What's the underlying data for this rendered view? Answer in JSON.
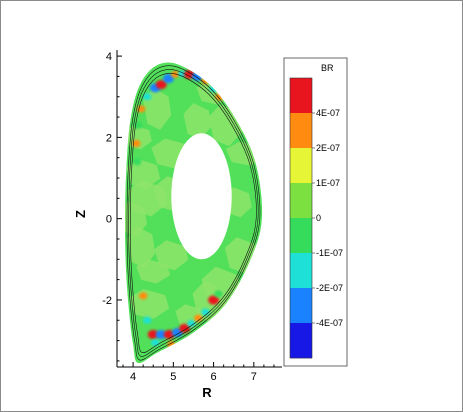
{
  "chart_data": {
    "type": "heatmap",
    "title": "",
    "xlabel": "R",
    "ylabel": "Z",
    "xlim": [
      3.6,
      7.7
    ],
    "ylim": [
      -3.65,
      4.15
    ],
    "x_ticks": [
      "4",
      "5",
      "6",
      "7"
    ],
    "y_ticks": [
      "4",
      "2",
      "0",
      "-2"
    ],
    "x_tick_values": [
      4,
      5,
      6,
      7
    ],
    "y_tick_values": [
      4,
      2,
      0,
      -2
    ],
    "legend": {
      "title": "BR",
      "placement": "right",
      "labels": [
        "4E-07",
        "2E-07",
        "1E-07",
        "0",
        "-1E-07",
        "-2E-07",
        "-4E-07"
      ],
      "colors": [
        "#e8141e",
        "#ff8c10",
        "#e6f536",
        "#7be040",
        "#35dc5c",
        "#1fe0d6",
        "#1a82ff",
        "#1818e6"
      ]
    },
    "colors": {
      "background_field": "#52e05a",
      "light_cell": "#8de46a",
      "flux_surface": "#111111",
      "hole": "#ffffff"
    },
    "cells": [
      {
        "r": 4.12,
        "z": 2.0,
        "v": 1.5e-07
      },
      {
        "r": 4.25,
        "z": 1.1,
        "v": 1.2e-07
      },
      {
        "r": 4.35,
        "z": 0.5,
        "v": 1.5e-07
      },
      {
        "r": 4.2,
        "z": -0.7,
        "v": 1.2e-07
      },
      {
        "r": 4.5,
        "z": -1.3,
        "v": 1.5e-07
      },
      {
        "r": 4.95,
        "z": 1.6,
        "v": 1.5e-07
      },
      {
        "r": 5.6,
        "z": 2.4,
        "v": 1.2e-07
      },
      {
        "r": 6.3,
        "z": 2.3,
        "v": 1.5e-07
      },
      {
        "r": 6.8,
        "z": 1.6,
        "v": 1.2e-07
      },
      {
        "r": 6.6,
        "z": 0.4,
        "v": 1.5e-07
      },
      {
        "r": 6.7,
        "z": -0.9,
        "v": 1.2e-07
      },
      {
        "r": 6.2,
        "z": -1.7,
        "v": 1.5e-07
      },
      {
        "r": 5.4,
        "z": -2.4,
        "v": 1.2e-07
      },
      {
        "r": 4.95,
        "z": -0.9,
        "v": 1.5e-07
      },
      {
        "r": 5.0,
        "z": 0.6,
        "v": 1.2e-07
      },
      {
        "r": 4.6,
        "z": 2.7,
        "v": 1.2e-07
      },
      {
        "r": 6.0,
        "z": 3.1,
        "v": 1.5e-07
      },
      {
        "r": 4.4,
        "z": -2.1,
        "v": 1.2e-07
      },
      {
        "r": 4.0,
        "z": 0.0,
        "v": 1.5e-07
      },
      {
        "r": 5.9,
        "z": -2.05,
        "v": 1.5e-07
      }
    ],
    "blobs": [
      {
        "r": 4.55,
        "z": 3.22,
        "v": -4e-07
      },
      {
        "r": 4.7,
        "z": 3.3,
        "v": 4e-07
      },
      {
        "r": 4.88,
        "z": 3.45,
        "v": -4e-07
      },
      {
        "r": 5.05,
        "z": 3.55,
        "v": 2e-07
      },
      {
        "r": 5.22,
        "z": 3.56,
        "v": -2e-07
      },
      {
        "r": 5.4,
        "z": 3.55,
        "v": 4e-07
      },
      {
        "r": 5.6,
        "z": 3.5,
        "v": -4e-07
      },
      {
        "r": 5.8,
        "z": 3.4,
        "v": 2e-07
      },
      {
        "r": 6.0,
        "z": 3.2,
        "v": -2e-07
      },
      {
        "r": 6.15,
        "z": 3.0,
        "v": 2e-07
      },
      {
        "r": 4.35,
        "z": 3.0,
        "v": -2e-07
      },
      {
        "r": 4.2,
        "z": 2.7,
        "v": 2e-07
      },
      {
        "r": 4.12,
        "z": 2.3,
        "v": -1e-07
      },
      {
        "r": 4.08,
        "z": 1.85,
        "v": 2e-07
      },
      {
        "r": 4.1,
        "z": 1.4,
        "v": -1e-07
      },
      {
        "r": 4.5,
        "z": -2.85,
        "v": 4e-07
      },
      {
        "r": 4.7,
        "z": -2.85,
        "v": -4e-07
      },
      {
        "r": 4.9,
        "z": -2.85,
        "v": 4e-07
      },
      {
        "r": 5.1,
        "z": -2.8,
        "v": -4e-07
      },
      {
        "r": 5.28,
        "z": -2.7,
        "v": 4e-07
      },
      {
        "r": 5.45,
        "z": -2.58,
        "v": -2e-07
      },
      {
        "r": 5.62,
        "z": -2.45,
        "v": 2e-07
      },
      {
        "r": 5.8,
        "z": -2.3,
        "v": -2e-07
      },
      {
        "r": 6.0,
        "z": -2.0,
        "v": 4e-07
      },
      {
        "r": 6.12,
        "z": -1.85,
        "v": -1e-07
      },
      {
        "r": 4.35,
        "z": -2.5,
        "v": -2e-07
      },
      {
        "r": 4.55,
        "z": -3.05,
        "v": -2e-07
      },
      {
        "r": 4.95,
        "z": -3.1,
        "v": 2e-07
      },
      {
        "r": 4.25,
        "z": -1.9,
        "v": 2e-07
      }
    ],
    "boundary": [
      [
        4.12,
        -3.55
      ],
      [
        4.6,
        -3.3
      ],
      [
        5.5,
        -2.8
      ],
      [
        6.3,
        -2.1
      ],
      [
        6.9,
        -1.05
      ],
      [
        7.2,
        0.0
      ],
      [
        7.05,
        1.35
      ],
      [
        6.55,
        2.45
      ],
      [
        5.9,
        3.3
      ],
      [
        5.1,
        3.8
      ],
      [
        4.55,
        3.75
      ],
      [
        4.15,
        3.25
      ],
      [
        3.93,
        2.4
      ],
      [
        3.83,
        1.2
      ],
      [
        3.8,
        0.0
      ],
      [
        3.82,
        -1.2
      ],
      [
        3.9,
        -2.3
      ],
      [
        4.0,
        -3.1
      ]
    ],
    "hole_center": [
      5.7,
      0.55
    ],
    "hole_radii": [
      0.75,
      1.55
    ],
    "flux_surface_offsets": [
      0.12,
      0.22,
      0.32
    ]
  }
}
